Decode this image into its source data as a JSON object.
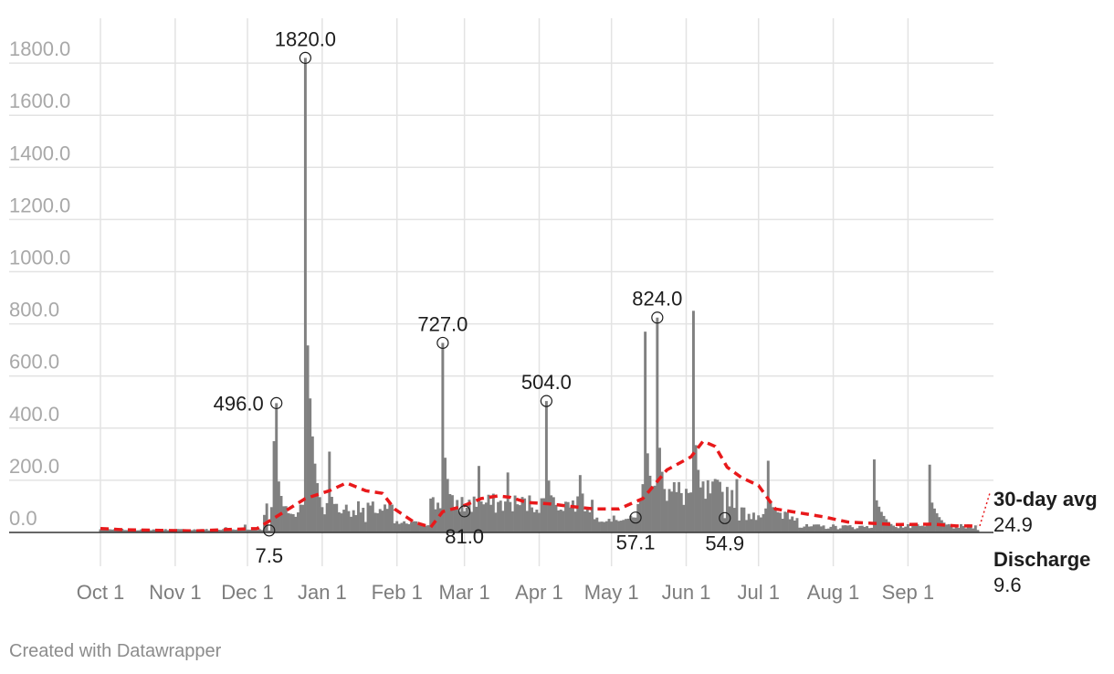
{
  "chart_data": {
    "type": "bar",
    "title": "",
    "xlabel": "",
    "ylabel": "",
    "ylim": [
      0,
      1800
    ],
    "y_ticks": [
      "0.0",
      "200.0",
      "400.0",
      "600.0",
      "800.0",
      "1000.0",
      "1200.0",
      "1400.0",
      "1600.0",
      "1800.0"
    ],
    "y_tick_values": [
      0,
      200,
      400,
      600,
      800,
      1000,
      1200,
      1400,
      1600,
      1800
    ],
    "x_ticks": [
      "Oct 1",
      "Nov 1",
      "Dec 1",
      "Jan 1",
      "Feb 1",
      "Mar 1",
      "Apr 1",
      "May 1",
      "Jun 1",
      "Jul 1",
      "Aug 1",
      "Sep 1"
    ],
    "x_tick_days": [
      0,
      31,
      61,
      92,
      123,
      151,
      182,
      212,
      243,
      273,
      304,
      335
    ],
    "grid": true,
    "series": [
      {
        "name": "Discharge",
        "color": "#808080",
        "style": "daily bars",
        "last_value": "9.6",
        "key_points": [
          {
            "day": 0,
            "value": 12
          },
          {
            "day": 45,
            "value": 8
          },
          {
            "day": 52,
            "value": 20
          },
          {
            "day": 60,
            "value": 30
          },
          {
            "day": 70,
            "value": 7.5
          },
          {
            "day": 72,
            "value": 350
          },
          {
            "day": 73,
            "value": 496
          },
          {
            "day": 80,
            "value": 70
          },
          {
            "day": 85,
            "value": 1820
          },
          {
            "day": 95,
            "value": 310
          },
          {
            "day": 110,
            "value": 40
          },
          {
            "day": 137,
            "value": 130
          },
          {
            "day": 142,
            "value": 727
          },
          {
            "day": 151,
            "value": 81
          },
          {
            "day": 157,
            "value": 255
          },
          {
            "day": 169,
            "value": 230
          },
          {
            "day": 185,
            "value": 504
          },
          {
            "day": 199,
            "value": 220
          },
          {
            "day": 222,
            "value": 57.1
          },
          {
            "day": 226,
            "value": 770
          },
          {
            "day": 231,
            "value": 824
          },
          {
            "day": 246,
            "value": 850
          },
          {
            "day": 259,
            "value": 54.9
          },
          {
            "day": 277,
            "value": 275
          },
          {
            "day": 321,
            "value": 280
          },
          {
            "day": 344,
            "value": 260
          },
          {
            "day": 364,
            "value": 9.6
          }
        ]
      },
      {
        "name": "30-day avg",
        "color": "#e8191b",
        "style": "dashed line",
        "last_value": "24.9",
        "points": [
          {
            "day": 0,
            "value": 15
          },
          {
            "day": 10,
            "value": 10
          },
          {
            "day": 25,
            "value": 8
          },
          {
            "day": 40,
            "value": 6
          },
          {
            "day": 55,
            "value": 12
          },
          {
            "day": 65,
            "value": 15
          },
          {
            "day": 72,
            "value": 55
          },
          {
            "day": 85,
            "value": 130
          },
          {
            "day": 95,
            "value": 160
          },
          {
            "day": 102,
            "value": 190
          },
          {
            "day": 110,
            "value": 160
          },
          {
            "day": 117,
            "value": 150
          },
          {
            "day": 122,
            "value": 90
          },
          {
            "day": 130,
            "value": 40
          },
          {
            "day": 137,
            "value": 20
          },
          {
            "day": 142,
            "value": 80
          },
          {
            "day": 150,
            "value": 100
          },
          {
            "day": 158,
            "value": 130
          },
          {
            "day": 165,
            "value": 140
          },
          {
            "day": 170,
            "value": 135
          },
          {
            "day": 177,
            "value": 115
          },
          {
            "day": 186,
            "value": 110
          },
          {
            "day": 195,
            "value": 100
          },
          {
            "day": 205,
            "value": 90
          },
          {
            "day": 215,
            "value": 90
          },
          {
            "day": 225,
            "value": 130
          },
          {
            "day": 235,
            "value": 240
          },
          {
            "day": 245,
            "value": 290
          },
          {
            "day": 250,
            "value": 350
          },
          {
            "day": 255,
            "value": 330
          },
          {
            "day": 260,
            "value": 250
          },
          {
            "day": 266,
            "value": 210
          },
          {
            "day": 273,
            "value": 180
          },
          {
            "day": 280,
            "value": 90
          },
          {
            "day": 290,
            "value": 75
          },
          {
            "day": 300,
            "value": 60
          },
          {
            "day": 310,
            "value": 40
          },
          {
            "day": 320,
            "value": 35
          },
          {
            "day": 330,
            "value": 30
          },
          {
            "day": 345,
            "value": 32
          },
          {
            "day": 355,
            "value": 25
          },
          {
            "day": 364,
            "value": 24.9
          }
        ]
      }
    ],
    "annotations": [
      {
        "label": "7.5",
        "day": 70,
        "value": 7.5,
        "pos": "below"
      },
      {
        "label": "496.0",
        "day": 73,
        "value": 496,
        "pos": "left"
      },
      {
        "label": "1820.0",
        "day": 85,
        "value": 1820,
        "pos": "above"
      },
      {
        "label": "727.0",
        "day": 142,
        "value": 727,
        "pos": "above"
      },
      {
        "label": "81.0",
        "day": 151,
        "value": 81,
        "pos": "below"
      },
      {
        "label": "504.0",
        "day": 185,
        "value": 504,
        "pos": "above"
      },
      {
        "label": "57.1",
        "day": 222,
        "value": 57.1,
        "pos": "below"
      },
      {
        "label": "824.0",
        "day": 231,
        "value": 824,
        "pos": "above"
      },
      {
        "label": "54.9",
        "day": 259,
        "value": 54.9,
        "pos": "below"
      }
    ],
    "legend": {
      "placement": "right-end"
    }
  },
  "footer": {
    "credit": "Created with Datawrapper"
  }
}
